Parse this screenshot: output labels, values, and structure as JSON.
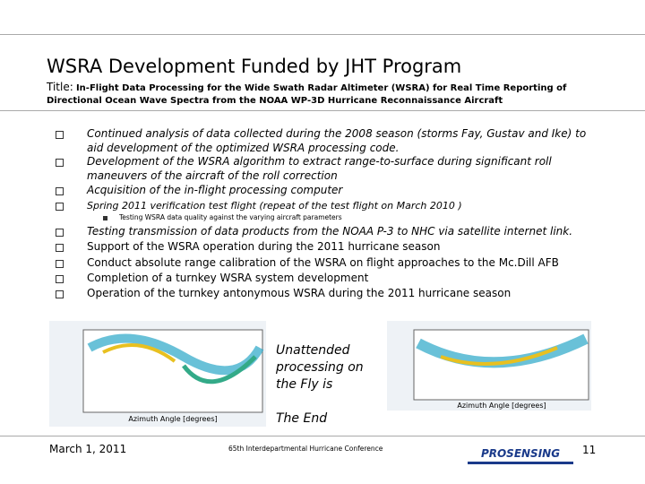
{
  "header": {
    "title": "WSRA Development Funded by JHT Program",
    "subtitle_label": "Title:",
    "subtitle": "In-Flight Data Processing for the Wide Swath Radar Altimeter (WSRA) for Real Time Reporting of Directional Ocean Wave Spectra from the NOAA WP-3D Hurricane Reconnaissance Aircraft"
  },
  "bullets": [
    "Continued analysis of data collected during the 2008 season (storms Fay, Gustav and Ike) to aid development of the optimized WSRA processing code.",
    "Development of the WSRA algorithm to extract range-to-surface during significant roll maneuvers of the aircraft of the roll correction",
    "Acquisition of the in-flight processing computer",
    "Spring 2011 verification test flight  (repeat of the test flight on March 2010 )"
  ],
  "sub_bullet": "Testing WSRA data quality against the varying aircraft parameters",
  "bullets2": [
    "Testing transmission of data products from the NOAA P-3 to NHC via satellite internet link.",
    "Support of the WSRA operation during the 2011 hurricane season",
    "Conduct absolute range calibration of the WSRA on flight approaches to the Mc.Dill AFB",
    "Completion of a turnkey WSRA system development",
    "Operation of the turnkey antonymous WSRA during the 2011 hurricane season"
  ],
  "figures": {
    "x_label": "Azimuth Angle [degrees]",
    "callout": "Unattended processing on the Fly is",
    "callout_end": "The End"
  },
  "footer": {
    "date": "March 1, 2011",
    "conference": "65th Interdepartmental Hurricane Conference",
    "logo": "PROSENSING",
    "page": "11"
  }
}
